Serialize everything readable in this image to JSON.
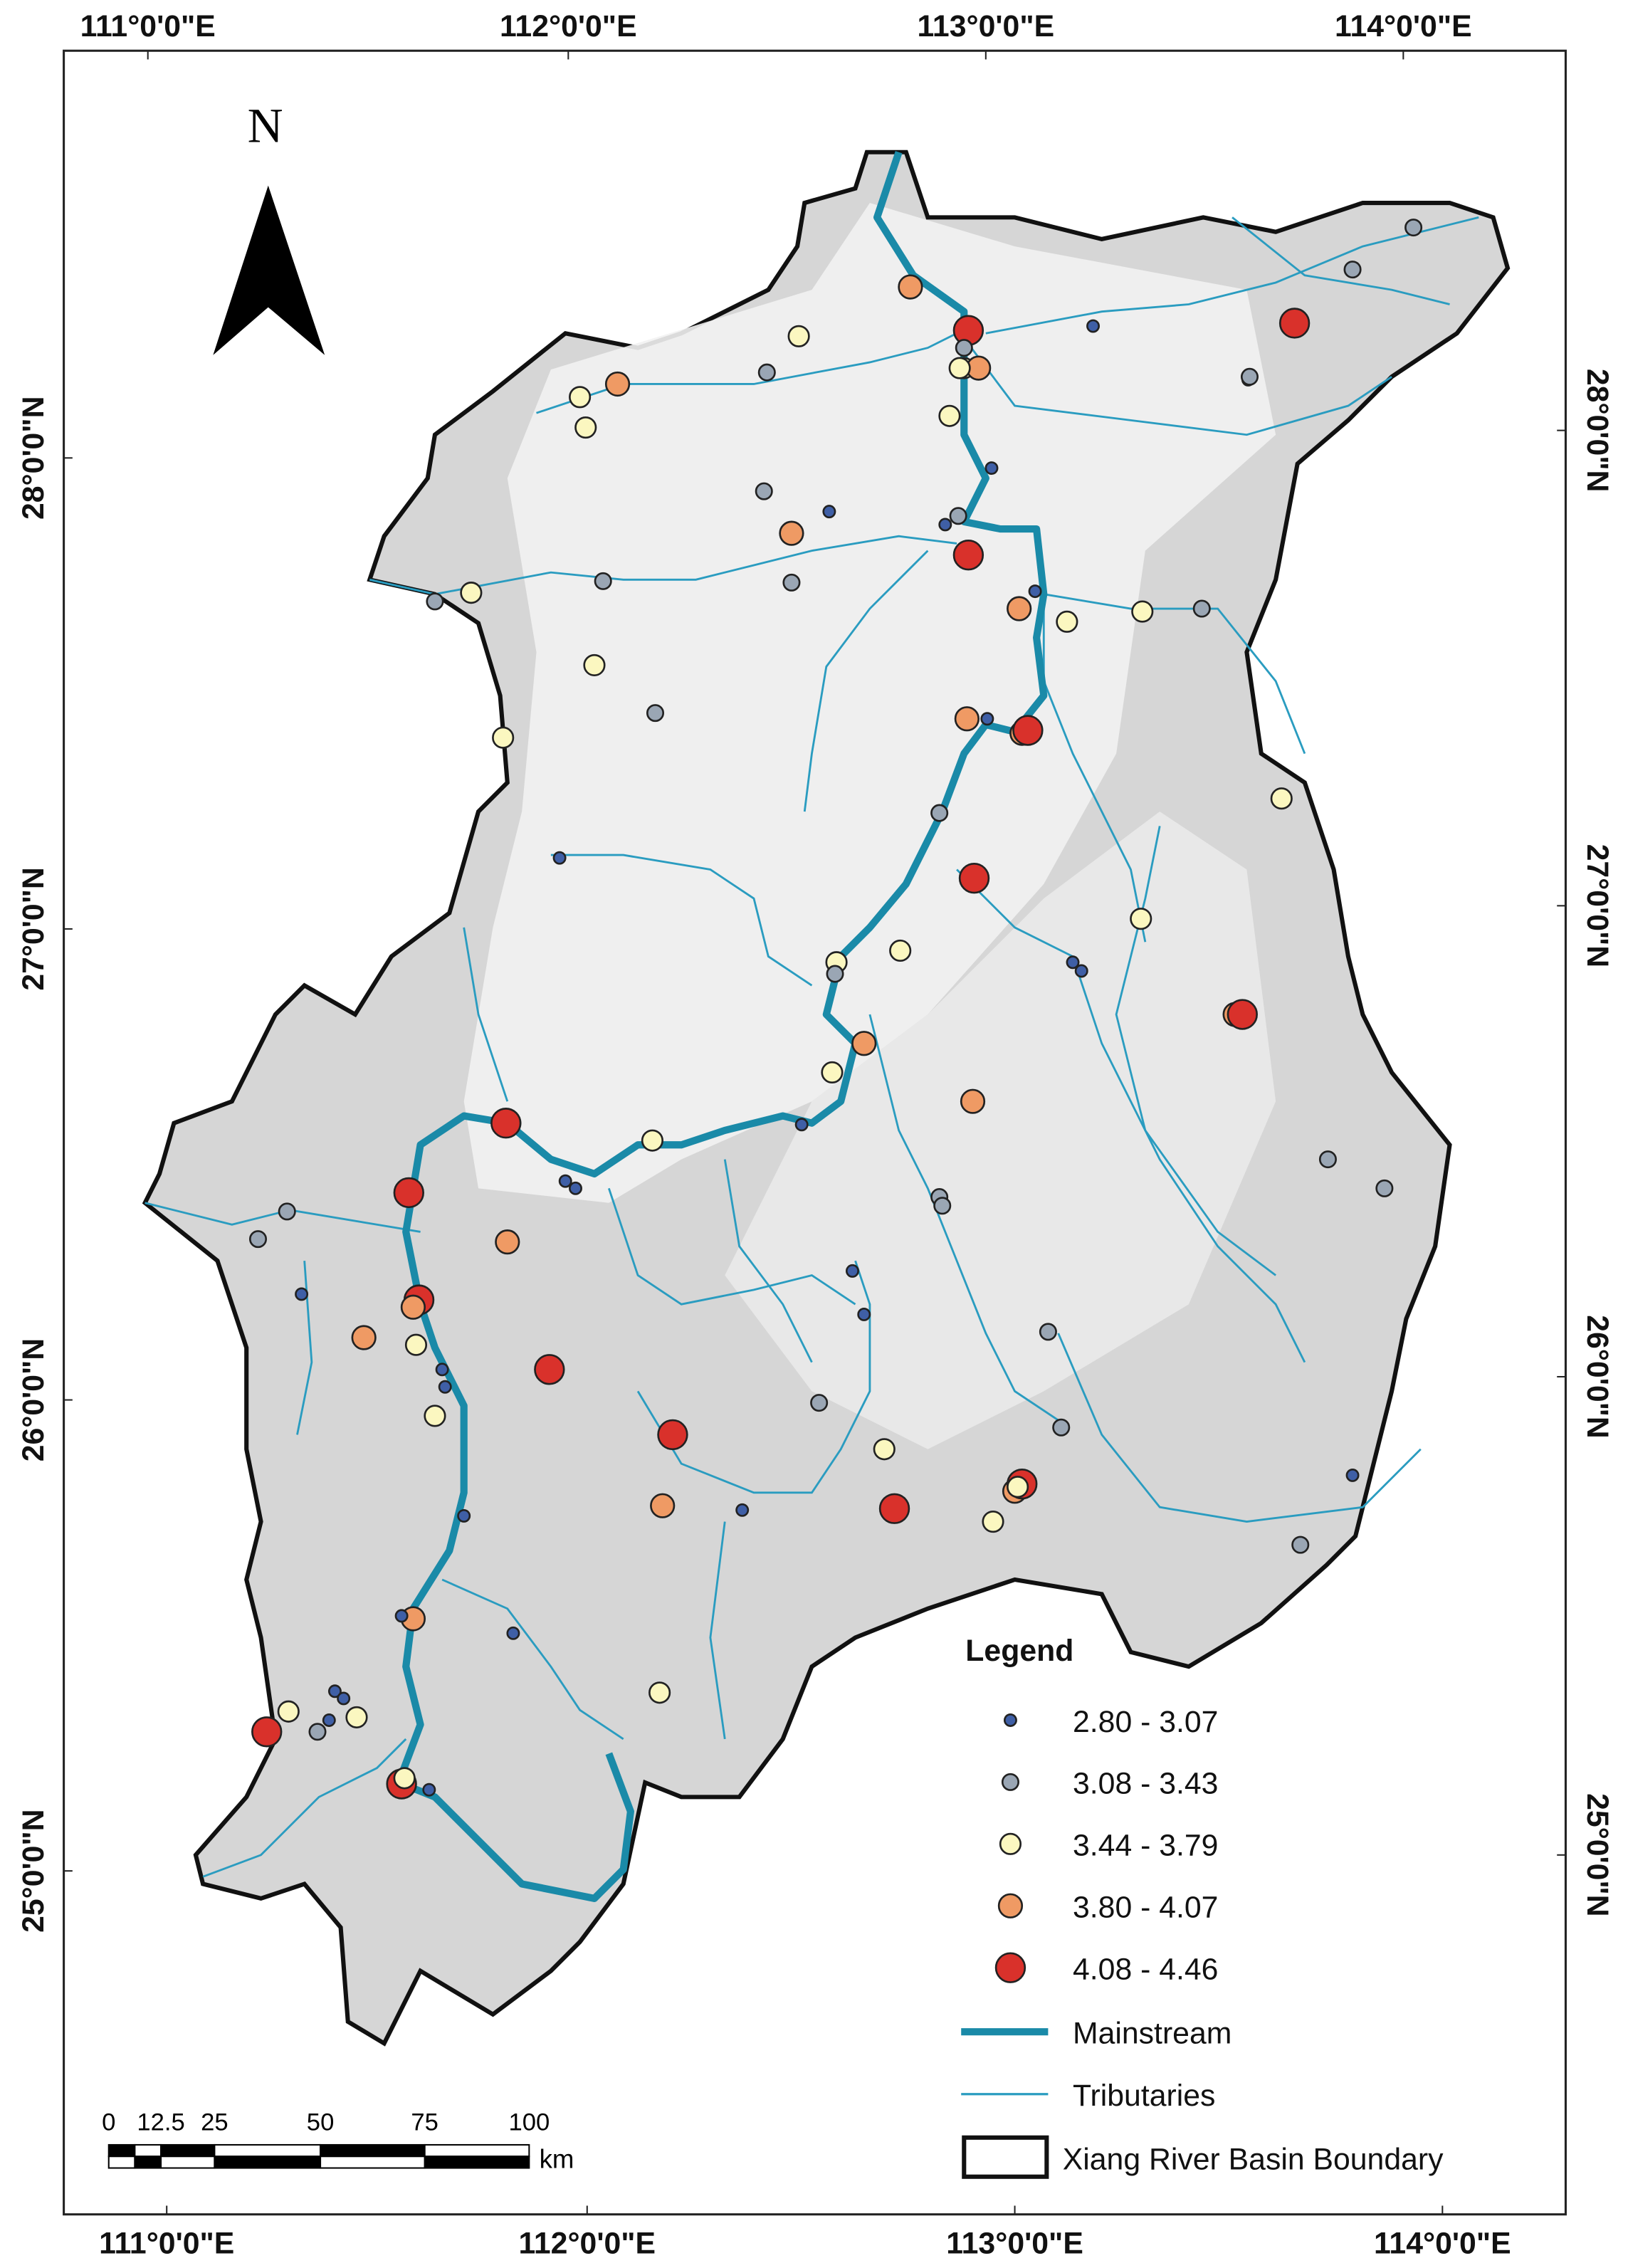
{
  "map": {
    "north_label": "N",
    "axes": {
      "top": [
        "111°0'0\"E",
        "112°0'0\"E",
        "113°0'0\"E",
        "114°0'0\"E"
      ],
      "bottom": [
        "111°0'0\"E",
        "112°0'0\"E",
        "113°0'0\"E",
        "114°0'0\"E"
      ],
      "left": [
        "28°0'0\"N",
        "27°0'0\"N",
        "26°0'0\"N",
        "25°0'0\"N"
      ],
      "right": [
        "28°0'0\"N",
        "27°0'0\"N",
        "26°0'0\"N",
        "25°0'0\"N"
      ]
    },
    "legend": {
      "title": "Legend",
      "classes": [
        {
          "label": "2.80 - 3.07",
          "color": "#3f5fa6"
        },
        {
          "label": "3.08 - 3.43",
          "color": "#9aa6b4"
        },
        {
          "label": "3.44 - 3.79",
          "color": "#fbf7c0"
        },
        {
          "label": "3.80 - 4.07",
          "color": "#ef9a64"
        },
        {
          "label": "4.08 - 4.46",
          "color": "#d9312b"
        }
      ],
      "mainstream": {
        "label": "Mainstream",
        "color": "#1a8aa8"
      },
      "tributaries": {
        "label": "Tributaries",
        "color": "#2a9cc0"
      },
      "boundary": "Xiang River Basin Boundary"
    },
    "scale_bar": {
      "ticks": [
        "0",
        "12.5",
        "25",
        "50",
        "75",
        "100"
      ],
      "unit": "km"
    }
  }
}
